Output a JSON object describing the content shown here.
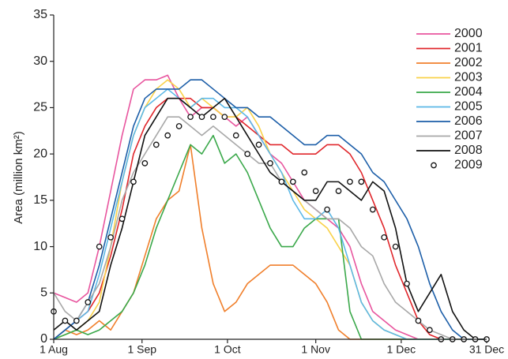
{
  "chart_data": {
    "type": "line",
    "y_label": "Area (million km²)",
    "x": [
      0,
      4,
      8,
      12,
      16,
      20,
      24,
      28,
      32,
      36,
      40,
      44,
      48,
      52,
      56,
      60,
      64,
      68,
      72,
      76,
      80,
      84,
      88,
      92,
      96,
      100,
      104,
      108,
      112,
      116,
      120,
      124,
      128,
      132,
      136,
      140,
      144,
      148,
      152
    ],
    "xlim": [
      0,
      152
    ],
    "xticks": [
      {
        "value": 0,
        "label": "1 Aug"
      },
      {
        "value": 31,
        "label": "1 Sep"
      },
      {
        "value": 61,
        "label": "1 Oct"
      },
      {
        "value": 92,
        "label": "1 Nov"
      },
      {
        "value": 122,
        "label": "1 Dec"
      },
      {
        "value": 152,
        "label": "31 Dec"
      }
    ],
    "ylim": [
      0,
      35
    ],
    "yticks": [
      0,
      5,
      10,
      15,
      20,
      25,
      30,
      35
    ],
    "grid": false,
    "legend": "upper right",
    "series": [
      {
        "name": "2000",
        "color": "#e8559e",
        "mode": "lines",
        "values": [
          5,
          4.5,
          4,
          5,
          10,
          16,
          22,
          27,
          28,
          28,
          28.5,
          26,
          24,
          25,
          25,
          24,
          23,
          24,
          22,
          20,
          19,
          17,
          15,
          14,
          13,
          12,
          10,
          6,
          3,
          2,
          1,
          0.5,
          0,
          0,
          0,
          0,
          0,
          0,
          0
        ]
      },
      {
        "name": "2001",
        "color": "#e0262b",
        "mode": "lines",
        "values": [
          0,
          1,
          2,
          3,
          5,
          9,
          14,
          20,
          23,
          25,
          26,
          26,
          26,
          25,
          25,
          24,
          24,
          23,
          22,
          21,
          21,
          20,
          20,
          20,
          21,
          21,
          20,
          18,
          15,
          12,
          8,
          5,
          2,
          0.5,
          0,
          0,
          0,
          0,
          0
        ]
      },
      {
        "name": "2002",
        "color": "#f07f2b",
        "mode": "lines",
        "values": [
          0,
          1,
          0.5,
          1,
          2,
          1,
          3,
          5,
          9,
          13,
          15,
          16,
          21,
          12,
          6,
          3,
          4,
          6,
          7,
          8,
          8,
          8,
          7,
          6,
          4,
          1,
          0,
          0,
          0,
          0,
          0,
          0,
          0,
          0,
          0,
          0,
          0,
          0,
          0
        ]
      },
      {
        "name": "2003",
        "color": "#f9d24a",
        "mode": "lines",
        "values": [
          0,
          0.5,
          1,
          2,
          4,
          10,
          17,
          22,
          25,
          27,
          28,
          27,
          25,
          26,
          25,
          24,
          24,
          25,
          23,
          20,
          18,
          16,
          14,
          13,
          12,
          10,
          8,
          4,
          2,
          1,
          0.5,
          0,
          0,
          0,
          0,
          0,
          0,
          0,
          0
        ]
      },
      {
        "name": "2004",
        "color": "#3aa84a",
        "mode": "lines",
        "values": [
          0,
          0.5,
          1,
          0.5,
          1,
          2,
          3,
          5,
          8,
          12,
          15,
          18,
          21,
          20,
          22,
          19,
          20,
          18,
          15,
          12,
          10,
          10,
          12,
          13,
          13,
          13,
          3,
          0,
          0,
          0,
          0,
          0,
          0,
          0,
          0,
          0,
          0,
          0,
          0
        ]
      },
      {
        "name": "2005",
        "color": "#5cb8e6",
        "mode": "lines",
        "values": [
          0,
          1,
          2,
          3,
          7,
          12,
          17,
          22,
          25,
          26,
          27,
          26,
          25,
          26,
          26,
          25,
          25,
          24,
          22,
          20,
          18,
          15,
          13,
          13,
          14,
          12,
          8,
          4,
          2,
          1,
          0.5,
          0,
          0,
          0,
          0,
          0,
          0,
          0,
          0
        ]
      },
      {
        "name": "2006",
        "color": "#1c5ea8",
        "mode": "lines",
        "values": [
          0,
          1,
          2,
          4,
          8,
          13,
          18,
          23,
          26,
          27,
          27,
          27,
          28,
          28,
          27,
          26,
          25,
          25,
          24,
          24,
          23,
          22,
          21,
          21,
          22,
          22,
          21,
          20,
          18,
          17,
          15,
          13,
          10,
          6,
          3,
          1,
          0,
          0,
          0
        ]
      },
      {
        "name": "2007",
        "color": "#a8a8a8",
        "mode": "lines",
        "values": [
          5,
          3,
          2,
          4,
          6,
          10,
          15,
          18,
          20,
          22,
          24,
          24,
          23,
          22,
          23,
          22,
          21,
          20,
          19,
          19,
          17,
          16,
          15,
          14,
          13,
          13,
          12,
          10,
          9,
          6,
          4,
          3,
          2,
          1,
          0.5,
          0,
          0,
          0,
          0
        ]
      },
      {
        "name": "2008",
        "color": "#111111",
        "mode": "lines",
        "values": [
          1,
          2,
          1,
          2,
          3,
          8,
          12,
          17,
          22,
          24,
          26,
          26,
          25,
          24,
          25,
          26,
          24,
          22,
          20,
          18,
          17,
          16,
          15,
          15,
          17,
          17,
          16,
          15,
          17,
          16,
          12,
          6,
          3,
          5,
          7,
          3,
          1,
          0,
          0
        ]
      },
      {
        "name": "2009",
        "color": "#111111",
        "mode": "markers",
        "values": [
          3,
          2,
          2,
          4,
          10,
          11,
          13,
          17,
          19,
          21,
          22,
          23,
          24,
          24,
          24,
          24,
          22,
          20,
          21,
          19,
          17,
          17,
          18,
          16,
          14,
          16,
          17,
          17,
          14,
          11,
          10,
          6,
          2,
          1,
          0,
          0,
          0,
          0,
          0
        ]
      }
    ]
  }
}
